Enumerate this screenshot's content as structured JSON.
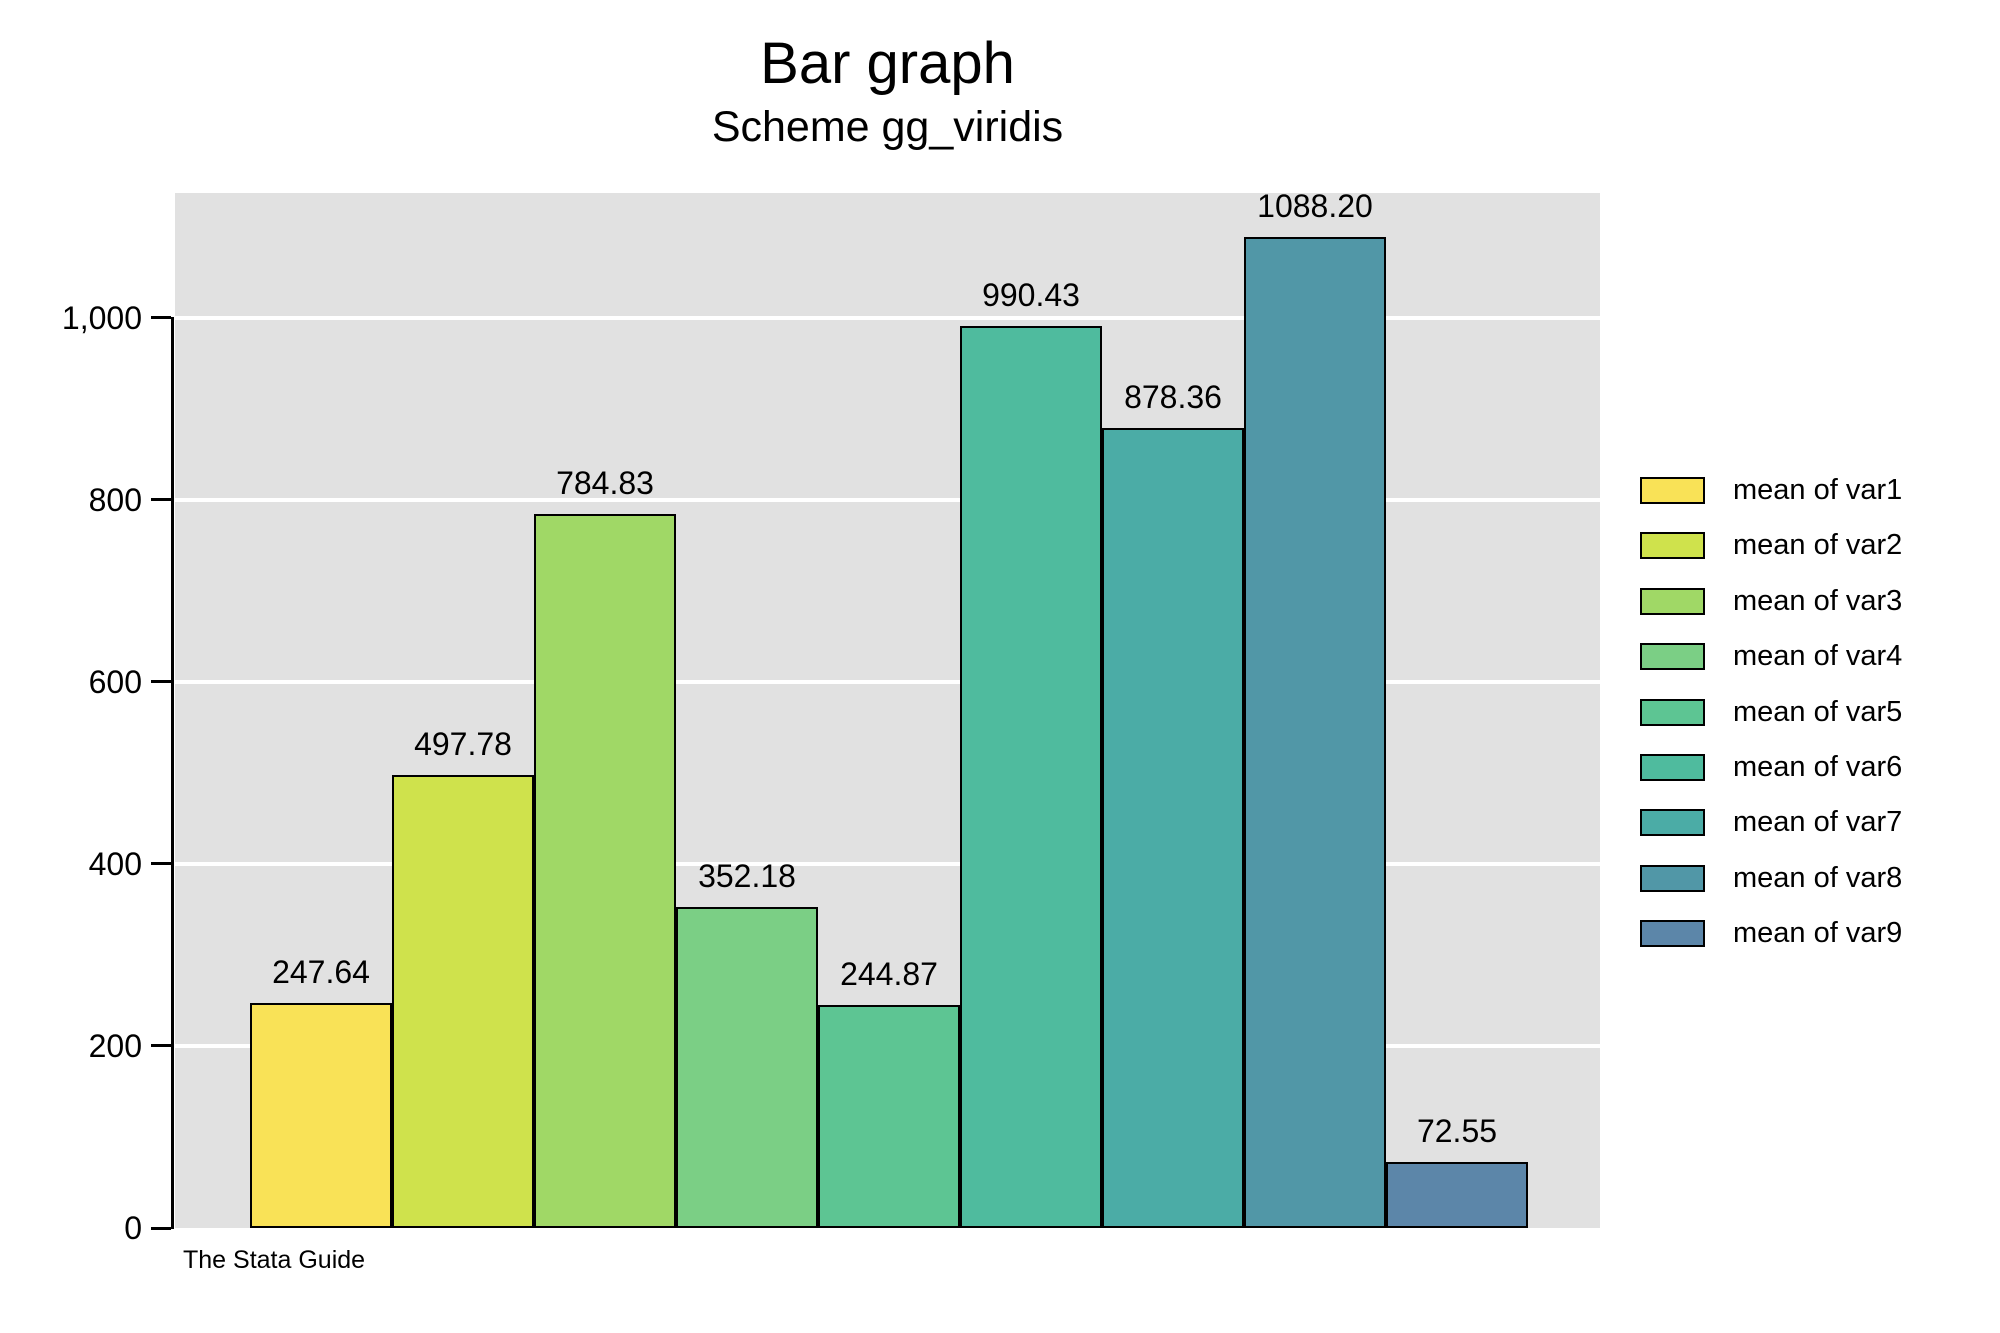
{
  "header": {
    "title": "Bar graph",
    "subtitle": "Scheme gg_viridis"
  },
  "caption": "The Stata Guide",
  "colors": {
    "plot_background": "#E1E1E1",
    "grid_color": "#FFFFFF",
    "axis_color": "#000000",
    "bar_outline": "#000000",
    "text_color": "#000000"
  },
  "chart_data": {
    "type": "bar",
    "title": "Bar graph",
    "subtitle": "Scheme gg_viridis",
    "xlabel": "",
    "ylabel": "",
    "ylim": [
      0,
      1137
    ],
    "grid": true,
    "legend_position": "right",
    "yticks": [
      0,
      200,
      400,
      600,
      800,
      1000
    ],
    "ytick_labels": [
      "0",
      "200",
      "400",
      "600",
      "800",
      "1,000"
    ],
    "gridline_values": [
      200,
      400,
      600,
      800,
      1000
    ],
    "series": [
      {
        "name": "mean of var1",
        "value": 247.64,
        "label": "247.64",
        "color": "#F9E257"
      },
      {
        "name": "mean of var2",
        "value": 497.78,
        "label": "497.78",
        "color": "#CFE24C"
      },
      {
        "name": "mean of var3",
        "value": 784.83,
        "label": "784.83",
        "color": "#A0D866"
      },
      {
        "name": "mean of var4",
        "value": 352.18,
        "label": "352.18",
        "color": "#7BCF85"
      },
      {
        "name": "mean of var5",
        "value": 244.87,
        "label": "244.87",
        "color": "#5DC593"
      },
      {
        "name": "mean of var6",
        "value": 990.43,
        "label": "990.43",
        "color": "#4FBB9E"
      },
      {
        "name": "mean of var7",
        "value": 878.36,
        "label": "878.36",
        "color": "#4BACA6"
      },
      {
        "name": "mean of var8",
        "value": 1088.2,
        "label": "1088.20",
        "color": "#5197A7"
      },
      {
        "name": "mean of var9",
        "value": 72.55,
        "label": "72.55",
        "color": "#5C86A9"
      }
    ]
  }
}
